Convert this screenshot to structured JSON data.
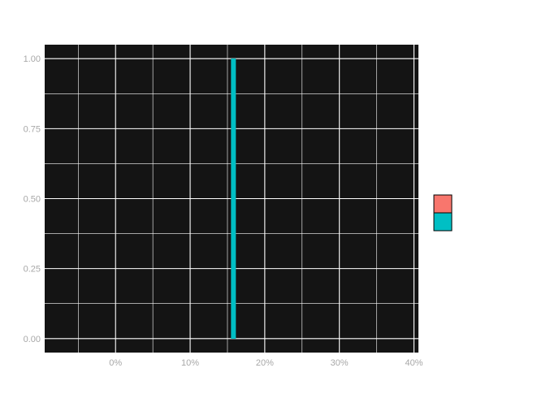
{
  "chart_data": {
    "type": "bar",
    "title": "",
    "xlabel": "",
    "ylabel": "",
    "x_ticks": [
      {
        "value": 0,
        "label": "0%"
      },
      {
        "value": 10,
        "label": "10%"
      },
      {
        "value": 20,
        "label": "20%"
      },
      {
        "value": 30,
        "label": "30%"
      },
      {
        "value": 40,
        "label": "40%"
      }
    ],
    "y_ticks": [
      {
        "value": 0.0,
        "label": "0.00"
      },
      {
        "value": 0.25,
        "label": "0.25"
      },
      {
        "value": 0.5,
        "label": "0.50"
      },
      {
        "value": 0.75,
        "label": "0.75"
      },
      {
        "value": 1.0,
        "label": "1.00"
      }
    ],
    "xlim": [
      -9.5,
      40.6
    ],
    "ylim": [
      -0.05,
      1.05
    ],
    "series": [
      {
        "color": "#F8766D",
        "values": [
          {
            "x": 15.8,
            "y": 0
          }
        ]
      },
      {
        "color": "#00BFC4",
        "values": [
          {
            "x": 15.8,
            "y": 1
          }
        ]
      }
    ],
    "bar_width": 0.6,
    "grid": true,
    "legend": {
      "position": "right"
    },
    "colors": {
      "panel_background": "#141414",
      "grid_line": "#ffffff",
      "tick_label": "#a8a8a8",
      "series_outline": "#000000"
    }
  }
}
